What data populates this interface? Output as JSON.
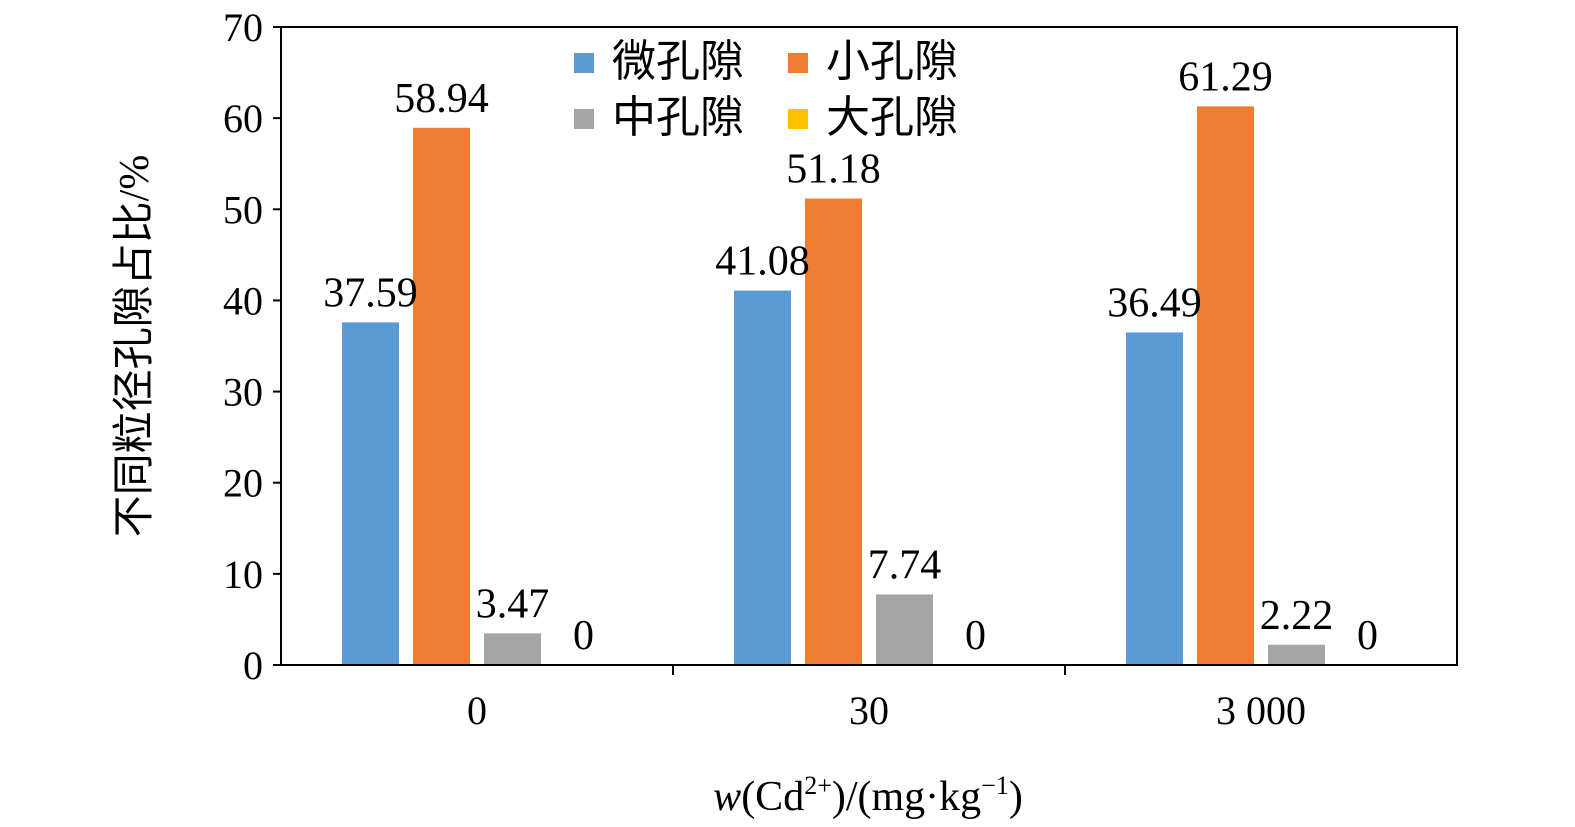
{
  "chart_data": {
    "type": "bar",
    "title": "",
    "categories": [
      "0",
      "30",
      "3 000"
    ],
    "series": [
      {
        "name": "微孔隙",
        "color": "#5b9bd5",
        "values": [
          37.59,
          41.08,
          36.49
        ],
        "labels": [
          "37.59",
          "41.08",
          "36.49"
        ]
      },
      {
        "name": "小孔隙",
        "color": "#ed7d31",
        "values": [
          58.94,
          51.18,
          61.29
        ],
        "labels": [
          "58.94",
          "51.18",
          "61.29"
        ]
      },
      {
        "name": "中孔隙",
        "color": "#a5a5a5",
        "values": [
          3.47,
          7.74,
          2.22
        ],
        "labels": [
          "3.47",
          "7.74",
          "2.22"
        ]
      },
      {
        "name": "大孔隙",
        "color": "#ffc000",
        "values": [
          0,
          0,
          0
        ],
        "labels": [
          "0",
          "0",
          "0"
        ]
      }
    ],
    "xlabel": {
      "italic": "w",
      "text1": "(Cd",
      "sup1": "2+",
      "text2": ")/(mg·kg",
      "sup2": "−1",
      "text3": ")"
    },
    "ylabel": "不同粒径孔隙占比/%",
    "ylim": [
      0,
      70
    ],
    "yticks": [
      "0",
      "10",
      "20",
      "30",
      "40",
      "50",
      "60",
      "70"
    ],
    "grid": false,
    "legend_position": "top-center"
  }
}
